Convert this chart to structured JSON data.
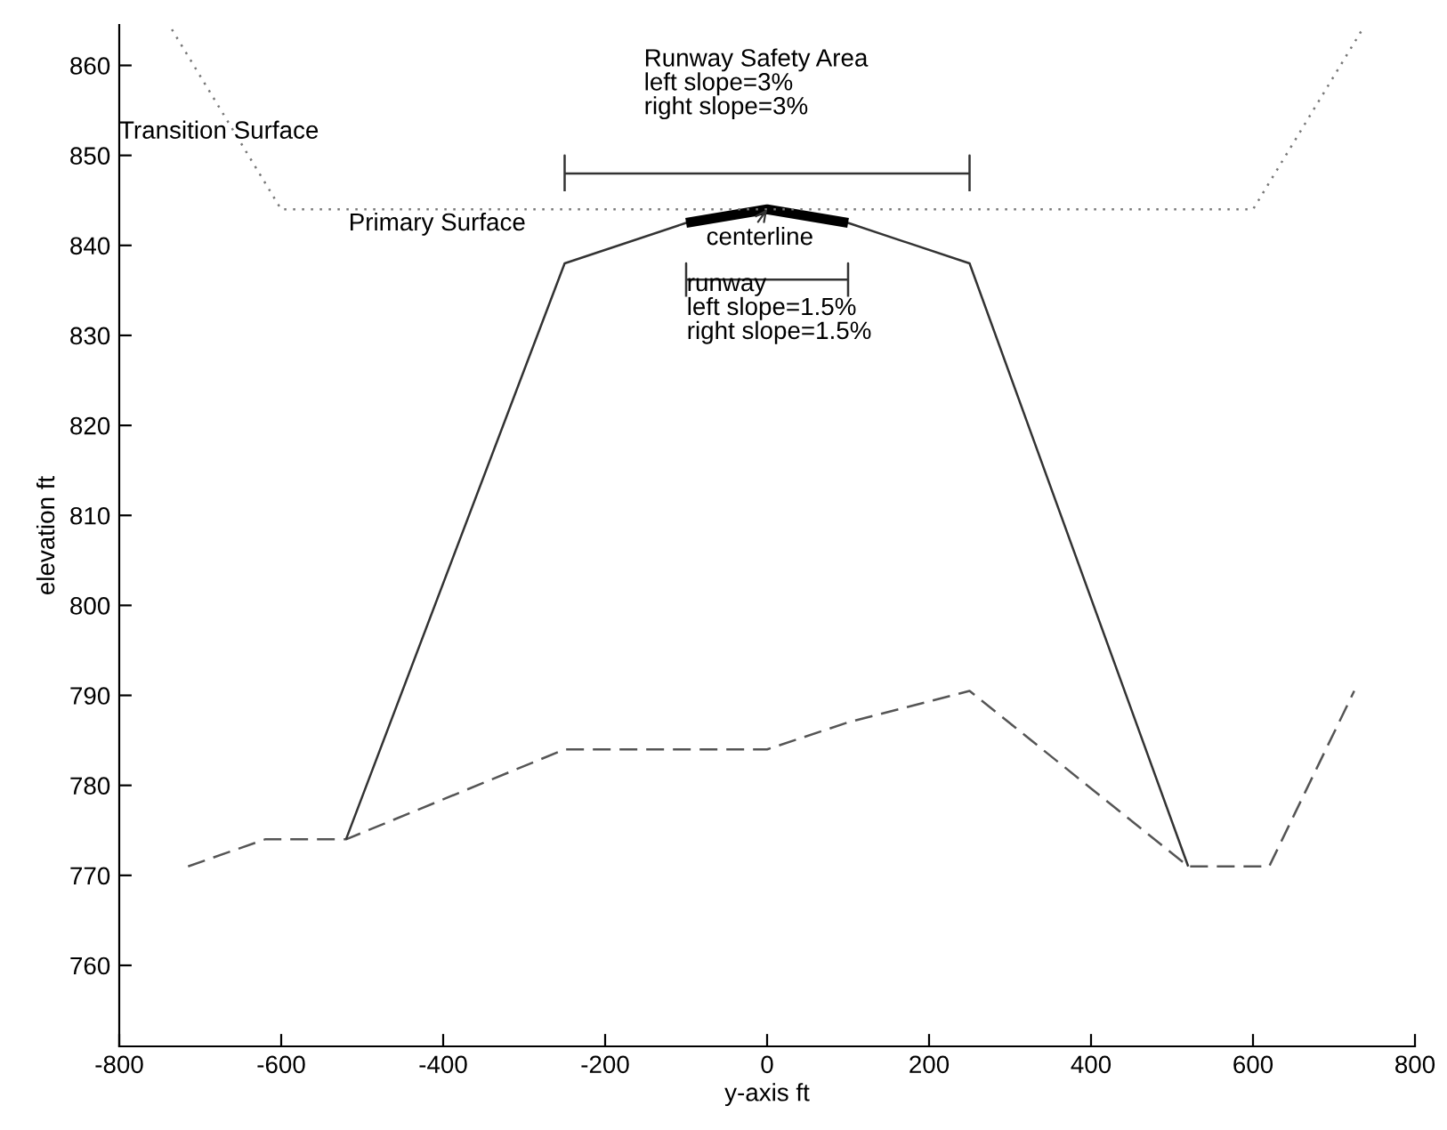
{
  "chart_data": {
    "type": "line",
    "xlabel": "y-axis ft",
    "ylabel": "elevation ft",
    "xlim": [
      -800,
      800
    ],
    "ylim": [
      751,
      864.5
    ],
    "xticks": [
      -800,
      -600,
      -400,
      -200,
      0,
      200,
      400,
      600,
      800
    ],
    "yticks": [
      760,
      770,
      780,
      790,
      800,
      810,
      820,
      830,
      840,
      850,
      860
    ],
    "grid": false,
    "legend": false,
    "marker": "none",
    "series": [
      {
        "color": "#555555",
        "line_style": "dashed",
        "x": [
          -715,
          -620,
          -520,
          -250,
          0,
          100,
          250,
          520,
          620,
          725
        ],
        "values": [
          771,
          774,
          774,
          784,
          784,
          787,
          790.5,
          771,
          771,
          790.5
        ]
      },
      {
        "color": "#333333",
        "line_style": "solid",
        "x": [
          -520,
          -250,
          -100,
          0,
          100,
          250,
          520
        ],
        "values": [
          774,
          838,
          842.5,
          844,
          842.5,
          838,
          771
        ]
      },
      {
        "color": "#000000",
        "line_style": "solid",
        "x": [
          -100,
          0,
          100
        ],
        "values": [
          842.5,
          844,
          842.5
        ]
      },
      {
        "color": "#777777",
        "line_style": "dotted",
        "x": [
          -735,
          -600,
          600,
          735
        ],
        "values": [
          864,
          844,
          844,
          864
        ]
      },
      {
        "color": "#333333",
        "line_style": "solid",
        "x": [
          -250,
          -250,
          -250,
          250,
          250,
          250
        ],
        "values": [
          846,
          850,
          848,
          848,
          850,
          846
        ]
      },
      {
        "color": "#333333",
        "line_style": "solid",
        "x": [
          -100,
          -100,
          -100,
          100,
          100,
          100
        ],
        "values": [
          834.3,
          838,
          836.2,
          836.2,
          838,
          834.3
        ]
      }
    ],
    "annotations": [
      "Transition Surface",
      "Primary Surface",
      "Runway Safety Area\nleft slope=3%\nright slope=3%",
      {
        "text": "centerline",
        "x": 0,
        "y": 844
      },
      "runway\nleft slope=1.5%\nright slope=1.5%"
    ]
  }
}
